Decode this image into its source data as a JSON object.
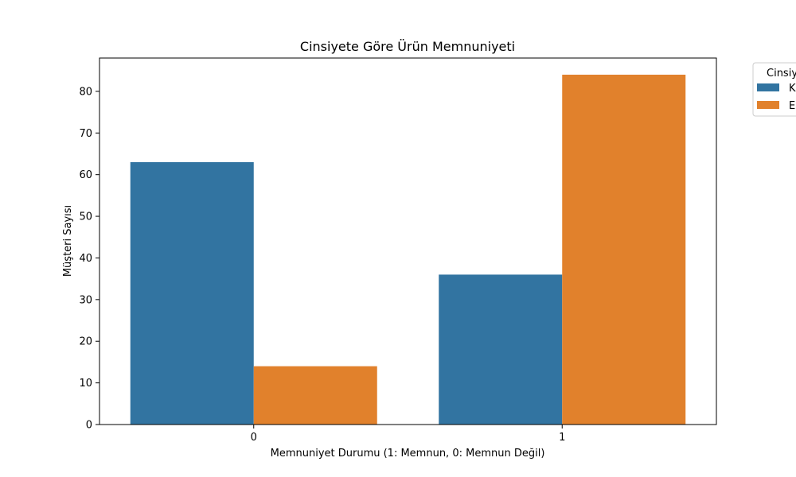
{
  "chart_data": {
    "type": "bar",
    "title": "Cinsiyete Göre Ürün Memnuniyeti",
    "xlabel": "Memnuniyet Durumu (1: Memnun, 0: Memnun Değil)",
    "ylabel": "Müşteri Sayısı",
    "categories": [
      "0",
      "1"
    ],
    "series": [
      {
        "name": "K",
        "values": [
          63,
          36
        ],
        "color": "#3274a1"
      },
      {
        "name": "E",
        "values": [
          14,
          84
        ],
        "color": "#e1812c"
      }
    ],
    "ylim": [
      0,
      88
    ],
    "yticks": [
      0,
      10,
      20,
      30,
      40,
      50,
      60,
      70,
      80
    ],
    "legend": {
      "title": "Cinsiy",
      "placement": "outside-top-right"
    },
    "grid": false
  }
}
